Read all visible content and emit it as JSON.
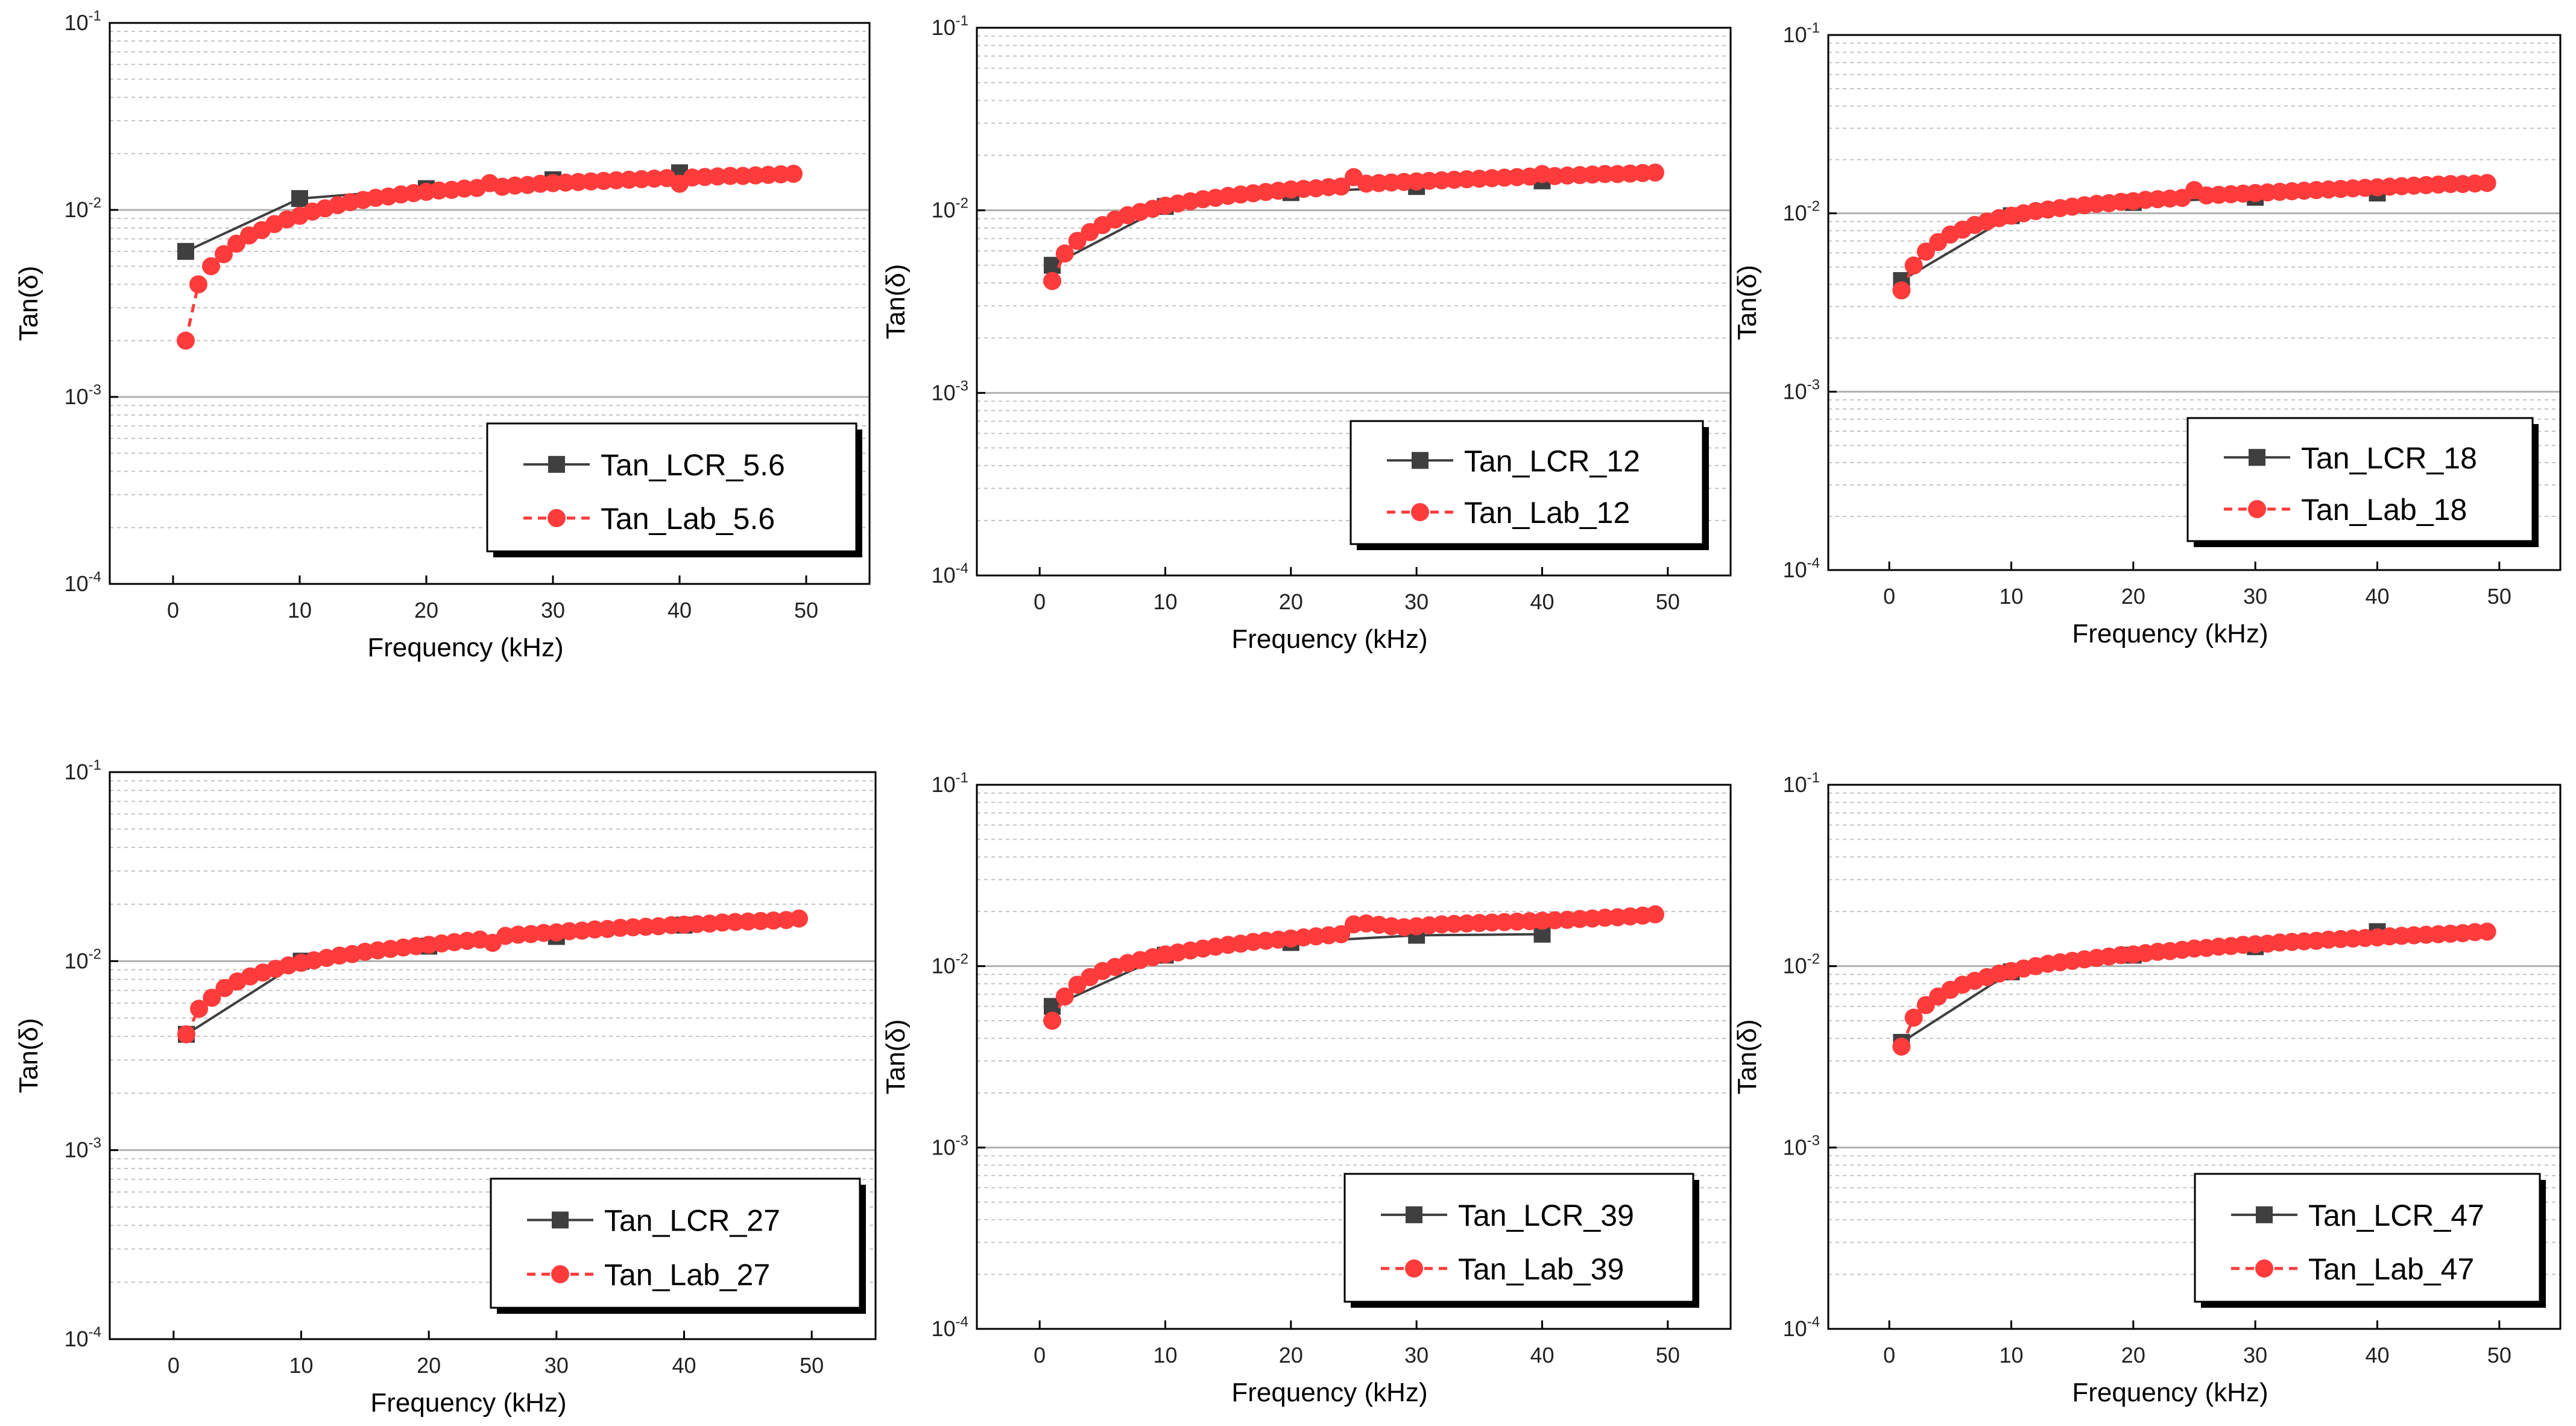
{
  "colors": {
    "lcr": "#3f3f3f",
    "lab": "#ff3b3b",
    "frame": "#000000",
    "grid_major": "#b0b0b0",
    "grid_minor": "#c4c4c4"
  },
  "chart_data": [
    {
      "type": "line",
      "title": "",
      "xlabel": "Frequency (kHz)",
      "ylabel": "Tan(δ)",
      "xlim": [
        -5,
        55
      ],
      "ylim": [
        0.0001,
        0.1
      ],
      "yscale": "log",
      "x_ticks": [
        0,
        10,
        20,
        30,
        40,
        50
      ],
      "y_ticks": [
        {
          "base": "10",
          "exp": "-4"
        },
        {
          "base": "10",
          "exp": "-3"
        },
        {
          "base": "10",
          "exp": "-2"
        },
        {
          "base": "10",
          "exp": "-1"
        }
      ],
      "legend_position": "bottom-right",
      "series": [
        {
          "name": "Tan_LCR_5.6",
          "x": [
            1,
            10,
            20,
            30,
            40
          ],
          "values": [
            0.006,
            0.0115,
            0.013,
            0.0145,
            0.0158
          ]
        },
        {
          "name": "Tan_Lab_5.6",
          "x": [
            1,
            2,
            3,
            4,
            5,
            6,
            7,
            8,
            9,
            10,
            11,
            12,
            13,
            14,
            15,
            16,
            17,
            18,
            19,
            20,
            21,
            22,
            23,
            24,
            25,
            26,
            27,
            28,
            29,
            30,
            31,
            32,
            33,
            34,
            35,
            36,
            37,
            38,
            39,
            40,
            41,
            42,
            43,
            44,
            45,
            46,
            47,
            48,
            49
          ],
          "values": [
            0.002,
            0.004,
            0.005,
            0.0058,
            0.0066,
            0.0073,
            0.0078,
            0.0084,
            0.0089,
            0.0093,
            0.0098,
            0.0102,
            0.0106,
            0.011,
            0.0113,
            0.0116,
            0.0118,
            0.0121,
            0.0123,
            0.0125,
            0.0127,
            0.0128,
            0.013,
            0.0131,
            0.0139,
            0.0133,
            0.0135,
            0.0136,
            0.0138,
            0.0139,
            0.014,
            0.0141,
            0.0142,
            0.0143,
            0.0144,
            0.0145,
            0.0146,
            0.0147,
            0.0148,
            0.0138,
            0.0149,
            0.015,
            0.0151,
            0.0152,
            0.0152,
            0.0153,
            0.0154,
            0.0155,
            0.0156
          ]
        }
      ]
    },
    {
      "type": "line",
      "title": "",
      "xlabel": "Frequency (kHz)",
      "ylabel": "Tan(δ)",
      "xlim": [
        -5,
        55
      ],
      "ylim": [
        0.0001,
        0.1
      ],
      "yscale": "log",
      "x_ticks": [
        0,
        10,
        20,
        30,
        40,
        50
      ],
      "y_ticks": [
        {
          "base": "10",
          "exp": "-4"
        },
        {
          "base": "10",
          "exp": "-3"
        },
        {
          "base": "10",
          "exp": "-2"
        },
        {
          "base": "10",
          "exp": "-1"
        }
      ],
      "legend_position": "bottom-right",
      "series": [
        {
          "name": "Tan_LCR_12",
          "x": [
            1,
            10,
            20,
            30,
            40
          ],
          "values": [
            0.005,
            0.0105,
            0.0125,
            0.0135,
            0.0145
          ]
        },
        {
          "name": "Tan_Lab_12",
          "x": [
            1,
            2,
            3,
            4,
            5,
            6,
            7,
            8,
            9,
            10,
            11,
            12,
            13,
            14,
            15,
            16,
            17,
            18,
            19,
            20,
            21,
            22,
            23,
            24,
            25,
            26,
            27,
            28,
            29,
            30,
            31,
            32,
            33,
            34,
            35,
            36,
            37,
            38,
            39,
            40,
            41,
            42,
            43,
            44,
            45,
            46,
            47,
            48,
            49
          ],
          "values": [
            0.0041,
            0.0058,
            0.0068,
            0.0076,
            0.0083,
            0.0089,
            0.0094,
            0.0098,
            0.0102,
            0.0106,
            0.0109,
            0.0112,
            0.0115,
            0.0117,
            0.012,
            0.0122,
            0.0124,
            0.0126,
            0.0128,
            0.013,
            0.0131,
            0.0132,
            0.0134,
            0.0135,
            0.0152,
            0.014,
            0.0141,
            0.0142,
            0.0143,
            0.0144,
            0.0145,
            0.0146,
            0.0147,
            0.0148,
            0.0149,
            0.015,
            0.0151,
            0.0152,
            0.0153,
            0.0158,
            0.0154,
            0.0155,
            0.0156,
            0.0157,
            0.0158,
            0.0158,
            0.0159,
            0.016,
            0.0161
          ]
        }
      ]
    },
    {
      "type": "line",
      "title": "",
      "xlabel": "Frequency (kHz)",
      "ylabel": "Tan(δ)",
      "xlim": [
        -5,
        55
      ],
      "ylim": [
        0.0001,
        0.1
      ],
      "yscale": "log",
      "x_ticks": [
        0,
        10,
        20,
        30,
        40,
        50
      ],
      "y_ticks": [
        {
          "base": "10",
          "exp": "-4"
        },
        {
          "base": "10",
          "exp": "-3"
        },
        {
          "base": "10",
          "exp": "-2"
        },
        {
          "base": "10",
          "exp": "-1"
        }
      ],
      "legend_position": "bottom-right",
      "series": [
        {
          "name": "Tan_LCR_18",
          "x": [
            1,
            10,
            20,
            30,
            40
          ],
          "values": [
            0.0042,
            0.0097,
            0.0115,
            0.0123,
            0.013
          ]
        },
        {
          "name": "Tan_Lab_18",
          "x": [
            1,
            2,
            3,
            4,
            5,
            6,
            7,
            8,
            9,
            10,
            11,
            12,
            13,
            14,
            15,
            16,
            17,
            18,
            19,
            20,
            21,
            22,
            23,
            24,
            25,
            26,
            27,
            28,
            29,
            30,
            31,
            32,
            33,
            34,
            35,
            36,
            37,
            38,
            39,
            40,
            41,
            42,
            43,
            44,
            45,
            46,
            47,
            48,
            49
          ],
          "values": [
            0.0037,
            0.0051,
            0.0061,
            0.0069,
            0.0076,
            0.0081,
            0.0086,
            0.009,
            0.0094,
            0.0097,
            0.01,
            0.0103,
            0.0105,
            0.0107,
            0.0109,
            0.0111,
            0.0113,
            0.0114,
            0.0116,
            0.0117,
            0.0119,
            0.012,
            0.0121,
            0.0122,
            0.0135,
            0.0126,
            0.0127,
            0.0128,
            0.0129,
            0.013,
            0.0131,
            0.0132,
            0.0133,
            0.0134,
            0.0135,
            0.0136,
            0.0137,
            0.0138,
            0.0139,
            0.014,
            0.0141,
            0.0142,
            0.0143,
            0.0144,
            0.0145,
            0.0146,
            0.0146,
            0.0147,
            0.0148
          ]
        }
      ]
    },
    {
      "type": "line",
      "title": "",
      "xlabel": "Frequency (kHz)",
      "ylabel": "Tan(δ)",
      "xlim": [
        -5,
        55
      ],
      "ylim": [
        0.0001,
        0.1
      ],
      "yscale": "log",
      "x_ticks": [
        0,
        10,
        20,
        30,
        40,
        50
      ],
      "y_ticks": [
        {
          "base": "10",
          "exp": "-4"
        },
        {
          "base": "10",
          "exp": "-3"
        },
        {
          "base": "10",
          "exp": "-2"
        },
        {
          "base": "10",
          "exp": "-1"
        }
      ],
      "legend_position": "bottom-right",
      "series": [
        {
          "name": "Tan_LCR_27",
          "x": [
            1,
            10,
            20,
            30,
            40
          ],
          "values": [
            0.0041,
            0.01,
            0.012,
            0.0135,
            0.0155
          ]
        },
        {
          "name": "Tan_Lab_27",
          "x": [
            1,
            2,
            3,
            4,
            5,
            6,
            7,
            8,
            9,
            10,
            11,
            12,
            13,
            14,
            15,
            16,
            17,
            18,
            19,
            20,
            21,
            22,
            23,
            24,
            25,
            26,
            27,
            28,
            29,
            30,
            31,
            32,
            33,
            34,
            35,
            36,
            37,
            38,
            39,
            40,
            41,
            42,
            43,
            44,
            45,
            46,
            47,
            48,
            49
          ],
          "values": [
            0.0041,
            0.0056,
            0.0064,
            0.0072,
            0.0078,
            0.0083,
            0.0087,
            0.0091,
            0.0095,
            0.0098,
            0.0101,
            0.0104,
            0.0107,
            0.0109,
            0.0112,
            0.0114,
            0.0116,
            0.0118,
            0.012,
            0.0122,
            0.0124,
            0.0126,
            0.0128,
            0.013,
            0.0125,
            0.0136,
            0.0138,
            0.0139,
            0.0141,
            0.0142,
            0.0144,
            0.0145,
            0.0147,
            0.0148,
            0.015,
            0.0151,
            0.0152,
            0.0153,
            0.0155,
            0.0156,
            0.0157,
            0.0158,
            0.016,
            0.0161,
            0.0162,
            0.0163,
            0.0164,
            0.0165,
            0.0168
          ]
        }
      ]
    },
    {
      "type": "line",
      "title": "",
      "xlabel": "Frequency (kHz)",
      "ylabel": "Tan(δ)",
      "xlim": [
        -5,
        55
      ],
      "ylim": [
        0.0001,
        0.1
      ],
      "yscale": "log",
      "x_ticks": [
        0,
        10,
        20,
        30,
        40,
        50
      ],
      "y_ticks": [
        {
          "base": "10",
          "exp": "-4"
        },
        {
          "base": "10",
          "exp": "-3"
        },
        {
          "base": "10",
          "exp": "-2"
        },
        {
          "base": "10",
          "exp": "-1"
        }
      ],
      "legend_position": "bottom-right",
      "series": [
        {
          "name": "Tan_LCR_39",
          "x": [
            1,
            10,
            20,
            30,
            40
          ],
          "values": [
            0.006,
            0.0115,
            0.0135,
            0.0148,
            0.015
          ]
        },
        {
          "name": "Tan_Lab_39",
          "x": [
            1,
            2,
            3,
            4,
            5,
            6,
            7,
            8,
            9,
            10,
            11,
            12,
            13,
            14,
            15,
            16,
            17,
            18,
            19,
            20,
            21,
            22,
            23,
            24,
            25,
            26,
            27,
            28,
            29,
            30,
            31,
            32,
            33,
            34,
            35,
            36,
            37,
            38,
            39,
            40,
            41,
            42,
            43,
            44,
            45,
            46,
            47,
            48,
            49
          ],
          "values": [
            0.005,
            0.0068,
            0.0079,
            0.0087,
            0.0094,
            0.0099,
            0.0104,
            0.0108,
            0.0112,
            0.0116,
            0.0119,
            0.0122,
            0.0125,
            0.0128,
            0.0131,
            0.0133,
            0.0136,
            0.0138,
            0.014,
            0.0142,
            0.0144,
            0.0146,
            0.0148,
            0.015,
            0.017,
            0.0172,
            0.0169,
            0.0166,
            0.0164,
            0.0166,
            0.0168,
            0.017,
            0.0171,
            0.0172,
            0.0173,
            0.0174,
            0.0175,
            0.0176,
            0.0177,
            0.0178,
            0.0179,
            0.018,
            0.0182,
            0.0183,
            0.0185,
            0.0186,
            0.0188,
            0.019,
            0.0193
          ]
        }
      ]
    },
    {
      "type": "line",
      "title": "",
      "xlabel": "Frequency (kHz)",
      "ylabel": "Tan(δ)",
      "xlim": [
        -5,
        55
      ],
      "ylim": [
        0.0001,
        0.1
      ],
      "yscale": "log",
      "x_ticks": [
        0,
        10,
        20,
        30,
        40,
        50
      ],
      "y_ticks": [
        {
          "base": "10",
          "exp": "-4"
        },
        {
          "base": "10",
          "exp": "-3"
        },
        {
          "base": "10",
          "exp": "-2"
        },
        {
          "base": "10",
          "exp": "-1"
        }
      ],
      "legend_position": "bottom-right",
      "series": [
        {
          "name": "Tan_LCR_47",
          "x": [
            1,
            10,
            20,
            30,
            40
          ],
          "values": [
            0.0038,
            0.0093,
            0.0115,
            0.0128,
            0.0155
          ]
        },
        {
          "name": "Tan_Lab_47",
          "x": [
            1,
            2,
            3,
            4,
            5,
            6,
            7,
            8,
            9,
            10,
            11,
            12,
            13,
            14,
            15,
            16,
            17,
            18,
            19,
            20,
            21,
            22,
            23,
            24,
            25,
            26,
            27,
            28,
            29,
            30,
            31,
            32,
            33,
            34,
            35,
            36,
            37,
            38,
            39,
            40,
            41,
            42,
            43,
            44,
            45,
            46,
            47,
            48,
            49
          ],
          "values": [
            0.0036,
            0.0052,
            0.0061,
            0.0068,
            0.0074,
            0.0079,
            0.0083,
            0.0087,
            0.0091,
            0.0094,
            0.0097,
            0.01,
            0.0103,
            0.0105,
            0.0107,
            0.0109,
            0.0111,
            0.0113,
            0.0115,
            0.0116,
            0.0118,
            0.012,
            0.0121,
            0.0123,
            0.0125,
            0.0126,
            0.0128,
            0.0129,
            0.0131,
            0.0132,
            0.0133,
            0.0135,
            0.0136,
            0.0137,
            0.0138,
            0.014,
            0.0141,
            0.0142,
            0.0143,
            0.0144,
            0.0146,
            0.0147,
            0.0148,
            0.0149,
            0.015,
            0.0151,
            0.0152,
            0.0154,
            0.0155
          ]
        }
      ]
    }
  ]
}
